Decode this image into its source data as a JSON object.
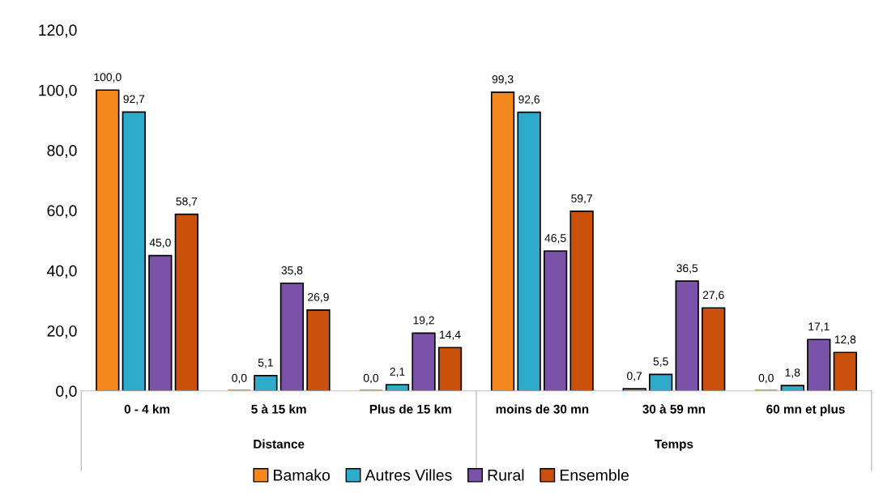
{
  "chart_data": {
    "type": "bar",
    "categories": [
      "0 - 4 km",
      "5 à 15 km",
      "Plus de 15 km",
      "moins de 30 mn",
      "30 à 59 mn",
      "60 mn et plus"
    ],
    "annotations": [
      "Distance",
      "Temps"
    ],
    "series": [
      {
        "name": "Bamako",
        "color": "#f5871f",
        "values": [
          100.0,
          0.0,
          0.0,
          99.3,
          0.7,
          0.0
        ],
        "value_labels": [
          "100,0",
          "0,0",
          "0,0",
          "99,3",
          "0,7",
          "0,0"
        ]
      },
      {
        "name": "Autres Villes",
        "color": "#2eaacb",
        "values": [
          92.7,
          5.1,
          2.1,
          92.6,
          5.5,
          1.8
        ],
        "value_labels": [
          "92,7",
          "5,1",
          "2,1",
          "92,6",
          "5,5",
          "1,8"
        ]
      },
      {
        "name": "Rural",
        "color": "#7a52a8",
        "values": [
          45.0,
          35.8,
          19.2,
          46.5,
          36.5,
          17.1
        ],
        "value_labels": [
          "45,0",
          "35,8",
          "19,2",
          "46,5",
          "36,5",
          "17,1"
        ]
      },
      {
        "name": "Ensemble",
        "color": "#c9510c",
        "values": [
          58.7,
          26.9,
          14.4,
          59.7,
          27.6,
          12.8
        ],
        "value_labels": [
          "58,7",
          "26,9",
          "14,4",
          "59,7",
          "27,6",
          "12,8"
        ]
      }
    ],
    "ylim": [
      0,
      120
    ],
    "yticks": [
      {
        "value": 0,
        "label": "0,0"
      },
      {
        "value": 20,
        "label": "20,0"
      },
      {
        "value": 40,
        "label": "40,0"
      },
      {
        "value": 60,
        "label": "60,0"
      },
      {
        "value": 80,
        "label": "80,0"
      },
      {
        "value": 100,
        "label": "100,0"
      },
      {
        "value": 120,
        "label": "120,0"
      }
    ],
    "grid": false,
    "legend": "bottom"
  }
}
